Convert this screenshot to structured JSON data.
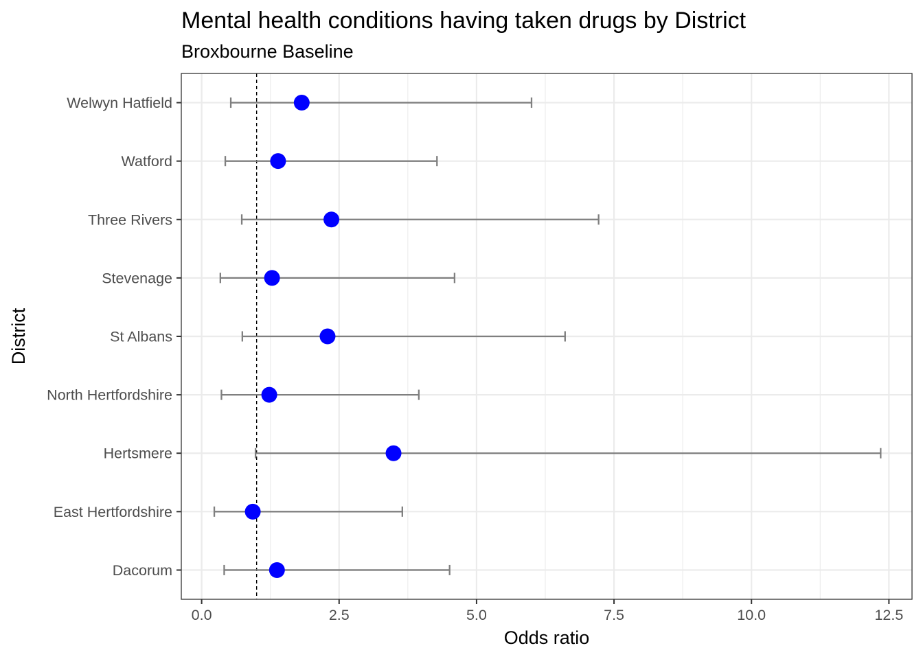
{
  "chart_data": {
    "type": "scatter",
    "subtype": "forest-plot-with-error-bars",
    "title": "Mental health conditions having taken drugs by District",
    "subtitle": "Broxbourne Baseline",
    "xlabel": "Odds ratio",
    "ylabel": "District",
    "xlim": [
      -0.37,
      12.92
    ],
    "x_ticks": [
      0,
      2.5,
      5,
      7.5,
      10,
      12.5
    ],
    "x_tick_labels": [
      "0.0",
      "2.5",
      "5.0",
      "7.5",
      "10.0",
      "12.5"
    ],
    "reference_line": 1.0,
    "grid": true,
    "legend": "none",
    "colors": {
      "point": "#0000ff",
      "error_bar": "#7f7f7f",
      "grid": "#ebebeb",
      "reference": "#000000"
    },
    "categories": [
      "Welwyn Hatfield",
      "Watford",
      "Three Rivers",
      "Stevenage",
      "St Albans",
      "North Hertfordshire",
      "Hertsmere",
      "East Hertfordshire",
      "Dacorum"
    ],
    "points": [
      {
        "district": "Welwyn Hatfield",
        "estimate": 1.82,
        "lower": 0.53,
        "upper": 6.0
      },
      {
        "district": "Watford",
        "estimate": 1.39,
        "lower": 0.43,
        "upper": 4.28
      },
      {
        "district": "Three Rivers",
        "estimate": 2.36,
        "lower": 0.73,
        "upper": 7.22
      },
      {
        "district": "Stevenage",
        "estimate": 1.28,
        "lower": 0.34,
        "upper": 4.6
      },
      {
        "district": "St Albans",
        "estimate": 2.29,
        "lower": 0.74,
        "upper": 6.61
      },
      {
        "district": "North Hertfordshire",
        "estimate": 1.23,
        "lower": 0.36,
        "upper": 3.95
      },
      {
        "district": "Hertsmere",
        "estimate": 3.49,
        "lower": 0.98,
        "upper": 12.35
      },
      {
        "district": "East Hertfordshire",
        "estimate": 0.93,
        "lower": 0.23,
        "upper": 3.65
      },
      {
        "district": "Dacorum",
        "estimate": 1.37,
        "lower": 0.41,
        "upper": 4.51
      }
    ]
  }
}
